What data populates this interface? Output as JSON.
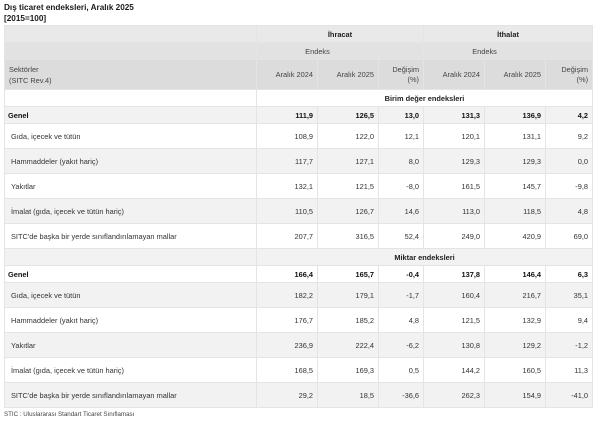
{
  "header": {
    "title": "Dış ticaret endeksleri, Aralık 2025",
    "subtitle": "[2015=100]"
  },
  "table": {
    "groups": [
      "İhracat",
      "İthalat"
    ],
    "subgroup": "Endeks",
    "row_label_header_line1": "Sektörler",
    "row_label_header_line2": "(SITC Rev.4)",
    "columns": [
      "Aralık 2024",
      "Aralık 2025",
      "Değişim (%)",
      "Aralık 2024",
      "Aralık 2025",
      "Değişim (%)"
    ],
    "change_label_line1": "Değişim",
    "change_label_line2": "(%)",
    "sections": [
      {
        "title": "Birim değer endeksleri",
        "genel": {
          "label": "Genel",
          "values": [
            "111,9",
            "126,5",
            "13,0",
            "131,3",
            "136,9",
            "4,2"
          ]
        },
        "rows": [
          {
            "label": "Gıda, içecek ve tütün",
            "values": [
              "108,9",
              "122,0",
              "12,1",
              "120,1",
              "131,1",
              "9,2"
            ]
          },
          {
            "label": "Hammaddeler (yakıt hariç)",
            "values": [
              "117,7",
              "127,1",
              "8,0",
              "129,3",
              "129,3",
              "0,0"
            ]
          },
          {
            "label": "Yakıtlar",
            "values": [
              "132,1",
              "121,5",
              "-8,0",
              "161,5",
              "145,7",
              "-9,8"
            ]
          },
          {
            "label": "İmalat (gıda, içecek ve tütün hariç)",
            "values": [
              "110,5",
              "126,7",
              "14,6",
              "113,0",
              "118,5",
              "4,8"
            ]
          },
          {
            "label": "SITC'de başka bir yerde sınıflandırılamayan mallar",
            "values": [
              "207,7",
              "316,5",
              "52,4",
              "249,0",
              "420,9",
              "69,0"
            ]
          }
        ]
      },
      {
        "title": "Miktar endeksleri",
        "genel": {
          "label": "Genel",
          "values": [
            "166,4",
            "165,7",
            "-0,4",
            "137,8",
            "146,4",
            "6,3"
          ]
        },
        "rows": [
          {
            "label": "Gıda, içecek ve tütün",
            "values": [
              "182,2",
              "179,1",
              "-1,7",
              "160,4",
              "216,7",
              "35,1"
            ]
          },
          {
            "label": "Hammaddeler (yakıt hariç)",
            "values": [
              "176,7",
              "185,2",
              "4,8",
              "121,5",
              "132,9",
              "9,4"
            ]
          },
          {
            "label": "Yakıtlar",
            "values": [
              "236,9",
              "222,4",
              "-6,2",
              "130,8",
              "129,2",
              "-1,2"
            ]
          },
          {
            "label": "İmalat (gıda, içecek ve tütün hariç)",
            "values": [
              "168,5",
              "169,3",
              "0,5",
              "144,2",
              "160,5",
              "11,3"
            ]
          },
          {
            "label": "SITC'de başka bir yerde sınıflandırılamayan mallar",
            "values": [
              "29,2",
              "18,5",
              "-36,6",
              "262,3",
              "154,9",
              "-41,0"
            ]
          }
        ]
      }
    ]
  },
  "footnote": "STIC : Uluslararası Standart Ticaret Sınıflaması"
}
